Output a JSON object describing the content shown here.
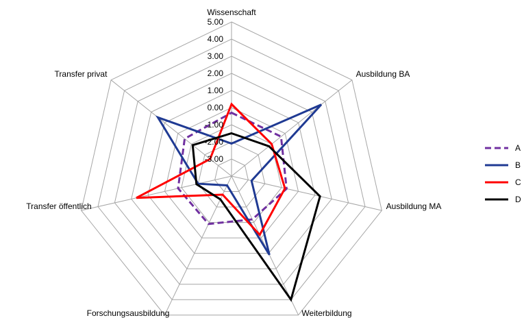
{
  "chart_data": {
    "type": "radar",
    "title": "",
    "axes": [
      "Wissenschaft",
      "Ausbildung BA",
      "Ausbildung MA",
      "Weiterbildung",
      "Forschungsausbildung",
      "Transfer öffentlich",
      "Transfer privat"
    ],
    "rlim": [
      -4,
      5
    ],
    "ticks": [
      -3,
      -2,
      -1,
      0,
      1,
      2,
      3,
      4,
      5
    ],
    "tick_labels": [
      "-3.00",
      "-2.00",
      "-1.00",
      "0.00",
      "1.00",
      "2.00",
      "3.00",
      "4.00",
      "5.00"
    ],
    "grid": true,
    "legend_position": "right",
    "series": [
      {
        "name": "A",
        "color": "#7030A0",
        "dash": "dashed",
        "values": [
          -0.3,
          -0.3,
          -0.7,
          -1.2,
          -0.9,
          -0.8,
          -0.5
        ]
      },
      {
        "name": "B",
        "color": "#1F3A93",
        "dash": "solid",
        "values": [
          -2.1,
          2.7,
          -2.8,
          1.1,
          -3.4,
          -2.0,
          1.5
        ]
      },
      {
        "name": "C",
        "color": "#FF0000",
        "dash": "solid",
        "values": [
          0.2,
          -1.0,
          -0.8,
          -0.2,
          -2.8,
          1.7,
          -2.4
        ]
      },
      {
        "name": "D",
        "color": "#000000",
        "dash": "solid",
        "values": [
          -1.5,
          -1.2,
          1.3,
          4.0,
          -2.5,
          -1.9,
          -1.1
        ]
      }
    ]
  }
}
